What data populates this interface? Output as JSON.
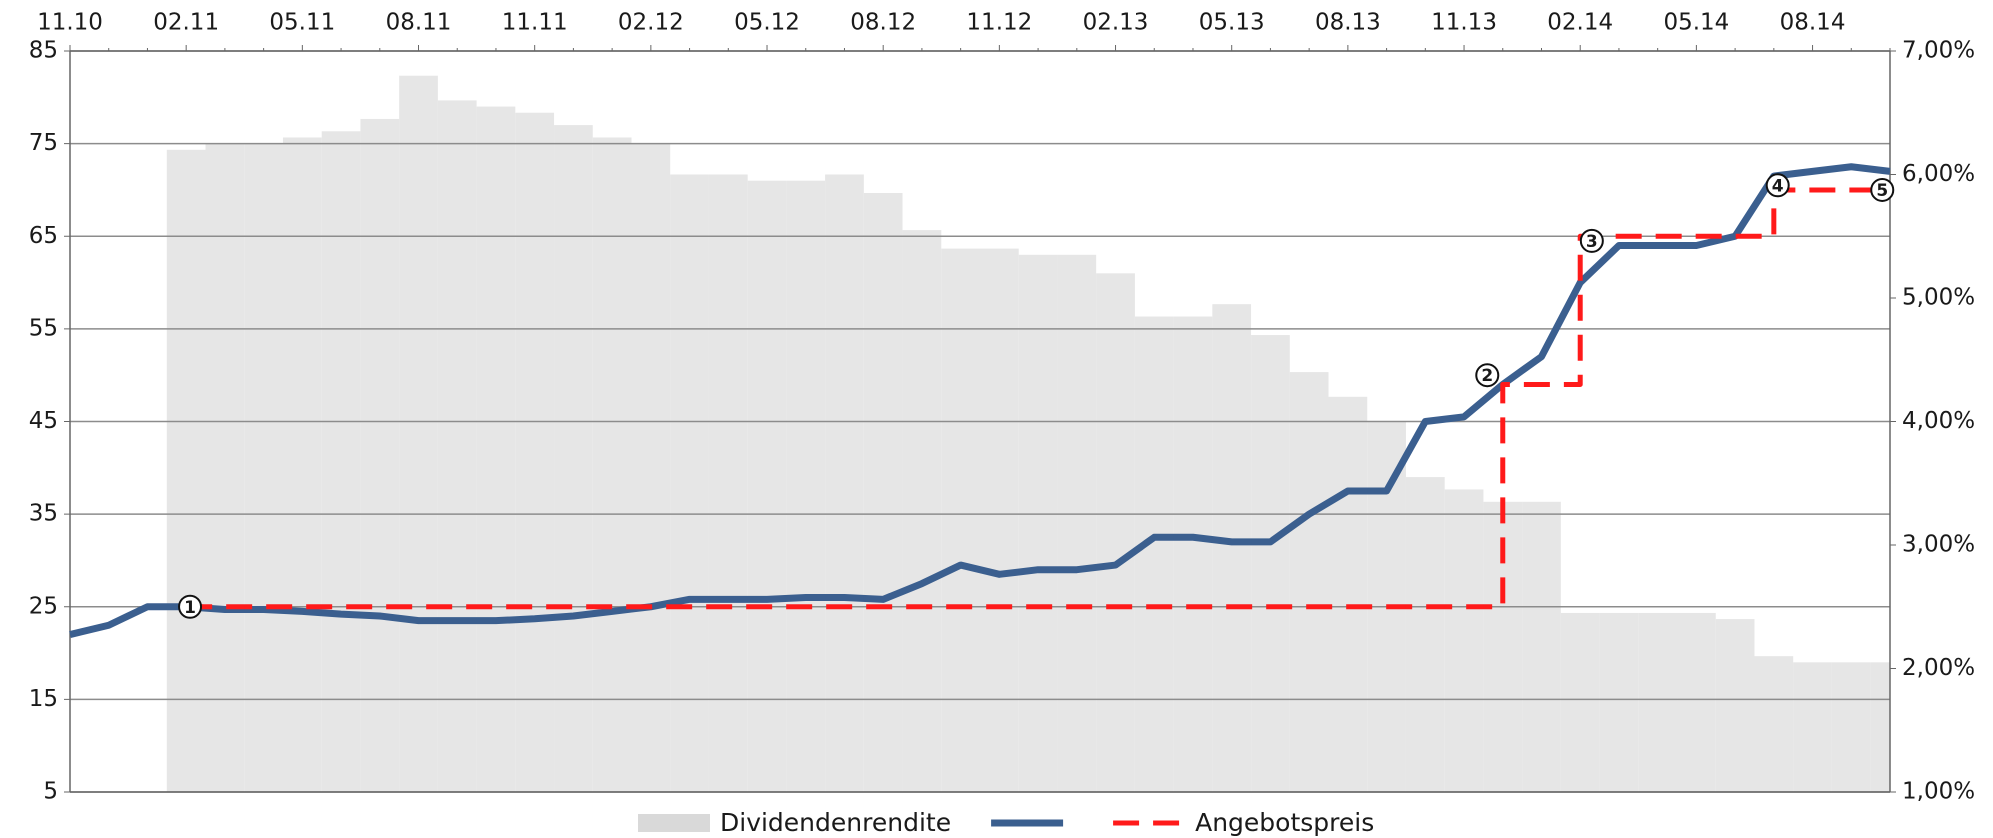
{
  "chart_data": {
    "type": "line",
    "categories": [
      "11.10",
      null,
      null,
      "02.11",
      null,
      null,
      "05.11",
      null,
      null,
      "08.11",
      null,
      null,
      "11.11",
      null,
      null,
      "02.12",
      null,
      null,
      "05.12",
      null,
      null,
      "08.12",
      null,
      null,
      "11.12",
      null,
      null,
      "02.13",
      null,
      null,
      "05.13",
      null,
      null,
      "08.13",
      null,
      null,
      "11.13",
      null,
      null,
      "02.14",
      null,
      null,
      "05.14",
      null,
      null,
      "08.14",
      null,
      null
    ],
    "series": [
      {
        "name": "Dividendenrendite",
        "color": "#e6e6e6",
        "kind": "bar",
        "axis": "y2",
        "values": [
          null,
          null,
          null,
          6.2,
          6.25,
          6.25,
          6.3,
          6.35,
          6.45,
          6.8,
          6.6,
          6.55,
          6.5,
          6.4,
          6.3,
          6.25,
          6.0,
          6.0,
          5.95,
          5.95,
          6.0,
          5.85,
          5.55,
          5.4,
          5.4,
          5.35,
          5.35,
          5.2,
          4.85,
          4.85,
          4.95,
          4.7,
          4.4,
          4.2,
          4.0,
          3.55,
          3.45,
          3.35,
          3.35,
          2.45,
          2.45,
          2.45,
          2.45,
          2.4,
          2.1,
          2.05,
          2.05,
          2.05
        ]
      },
      {
        "color": "#3b5f8f",
        "kind": "line",
        "values": [
          22,
          23,
          25,
          25,
          24.7,
          24.7,
          24.5,
          24.2,
          24,
          23.5,
          23.5,
          23.5,
          23.7,
          24,
          24.5,
          25,
          25.8,
          25.8,
          25.8,
          26,
          26,
          25.8,
          27.5,
          29.5,
          28.5,
          29,
          29,
          29.5,
          32.5,
          32.5,
          32,
          32,
          35,
          37.5,
          37.5,
          45,
          45.5,
          49,
          52,
          60,
          64,
          64,
          64,
          65,
          71.5,
          72,
          72.5,
          72
        ]
      },
      {
        "name": "Angebotspreis",
        "color": "#ff1a1a",
        "kind": "step",
        "values": [
          null,
          null,
          null,
          25,
          25,
          25,
          25,
          25,
          25,
          25,
          25,
          25,
          25,
          25,
          25,
          25,
          25,
          25,
          25,
          25,
          25,
          25,
          25,
          25,
          25,
          25,
          25,
          25,
          25,
          25,
          25,
          25,
          25,
          25,
          25,
          25,
          25,
          49,
          49,
          65,
          65,
          65,
          65,
          65,
          70,
          70,
          70,
          70
        ]
      }
    ],
    "ylim": [
      5,
      85
    ],
    "yticks": [
      5,
      15,
      25,
      35,
      45,
      55,
      65,
      75,
      85
    ],
    "y2lim": [
      1,
      7
    ],
    "y2ticks": [
      {
        "value": 1,
        "label": "1,00%"
      },
      {
        "value": 2,
        "label": "2,00%"
      },
      {
        "value": 3,
        "label": "3,00%"
      },
      {
        "value": 4,
        "label": "4,00%"
      },
      {
        "value": 5,
        "label": "5,00%"
      },
      {
        "value": 6,
        "label": "6,00%"
      },
      {
        "value": 7,
        "label": "7,00%"
      }
    ],
    "grid": true,
    "legend": "bottom",
    "annotations": [
      {
        "text": "1",
        "x": 3.1,
        "y": 25
      },
      {
        "text": "2",
        "x": 36.6,
        "y": 50
      },
      {
        "text": "3",
        "x": 39.3,
        "y": 64.5
      },
      {
        "text": "4",
        "x": 44.1,
        "y": 70.5
      },
      {
        "text": "5",
        "x": 46.8,
        "y": 70
      }
    ]
  }
}
